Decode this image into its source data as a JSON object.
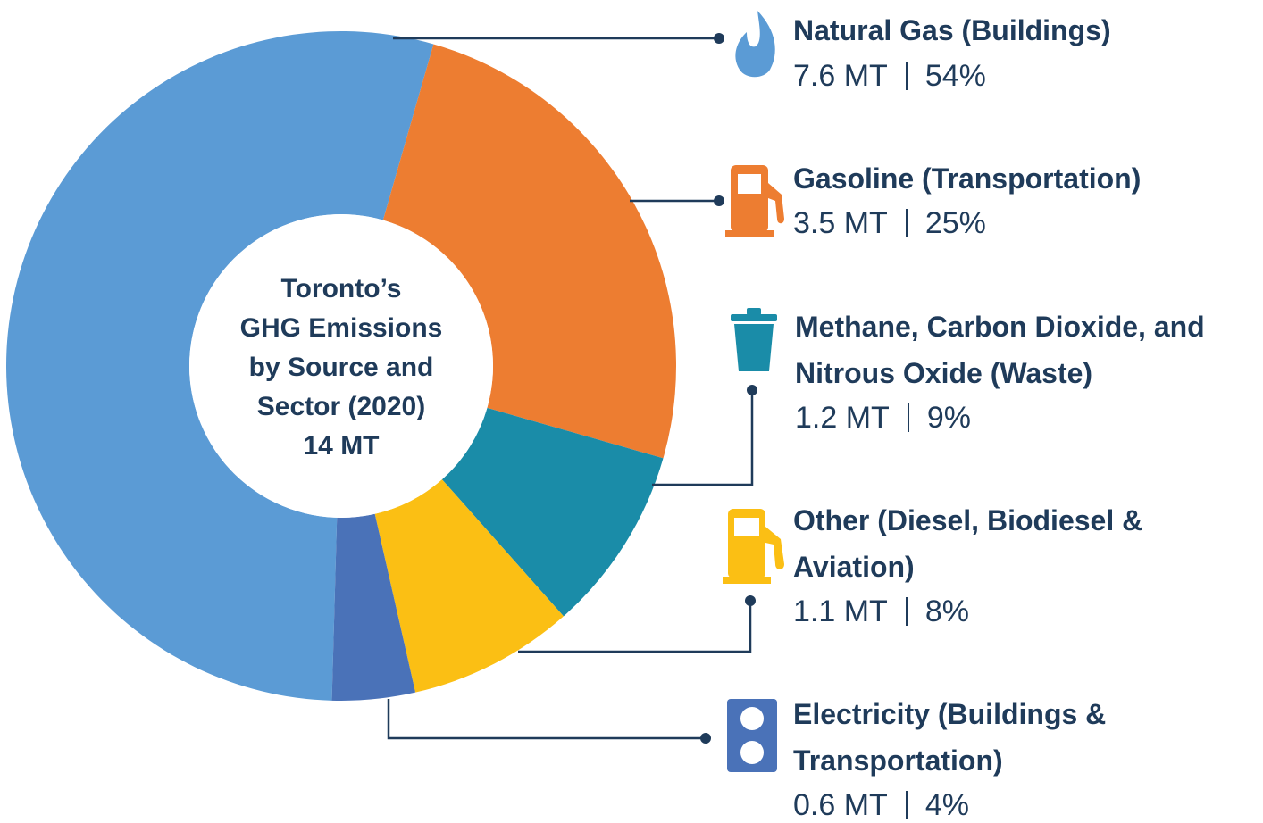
{
  "chart_data": {
    "type": "pie",
    "donut": true,
    "center_text": [
      "Toronto’s",
      "GHG Emissions",
      "by Source and",
      "Sector (2020)"
    ],
    "total": 14,
    "total_label": "14 MT",
    "categories": [
      "Natural Gas (Buildings)",
      "Gasoline (Transportation)",
      "Methane, Carbon Dioxide, and Nitrous Oxide (Waste)",
      "Other (Diesel, Biodiesel & Aviation)",
      "Electricity (Buildings & Transportation)"
    ],
    "values": [
      54,
      25,
      9,
      8,
      4
    ],
    "value_labels": [
      "54%",
      "25%",
      "9%",
      "8%",
      "4%"
    ],
    "amounts": [
      7.6,
      3.5,
      1.2,
      1.1,
      0.6
    ],
    "amount_labels": [
      "7.6 MT",
      "3.5 MT",
      "1.2 MT",
      "1.1 MT",
      "0.6 MT"
    ],
    "colors": [
      "#5b9bd5",
      "#ed7d31",
      "#1a8ca8",
      "#fbbf14",
      "#4a72b8"
    ]
  }
}
